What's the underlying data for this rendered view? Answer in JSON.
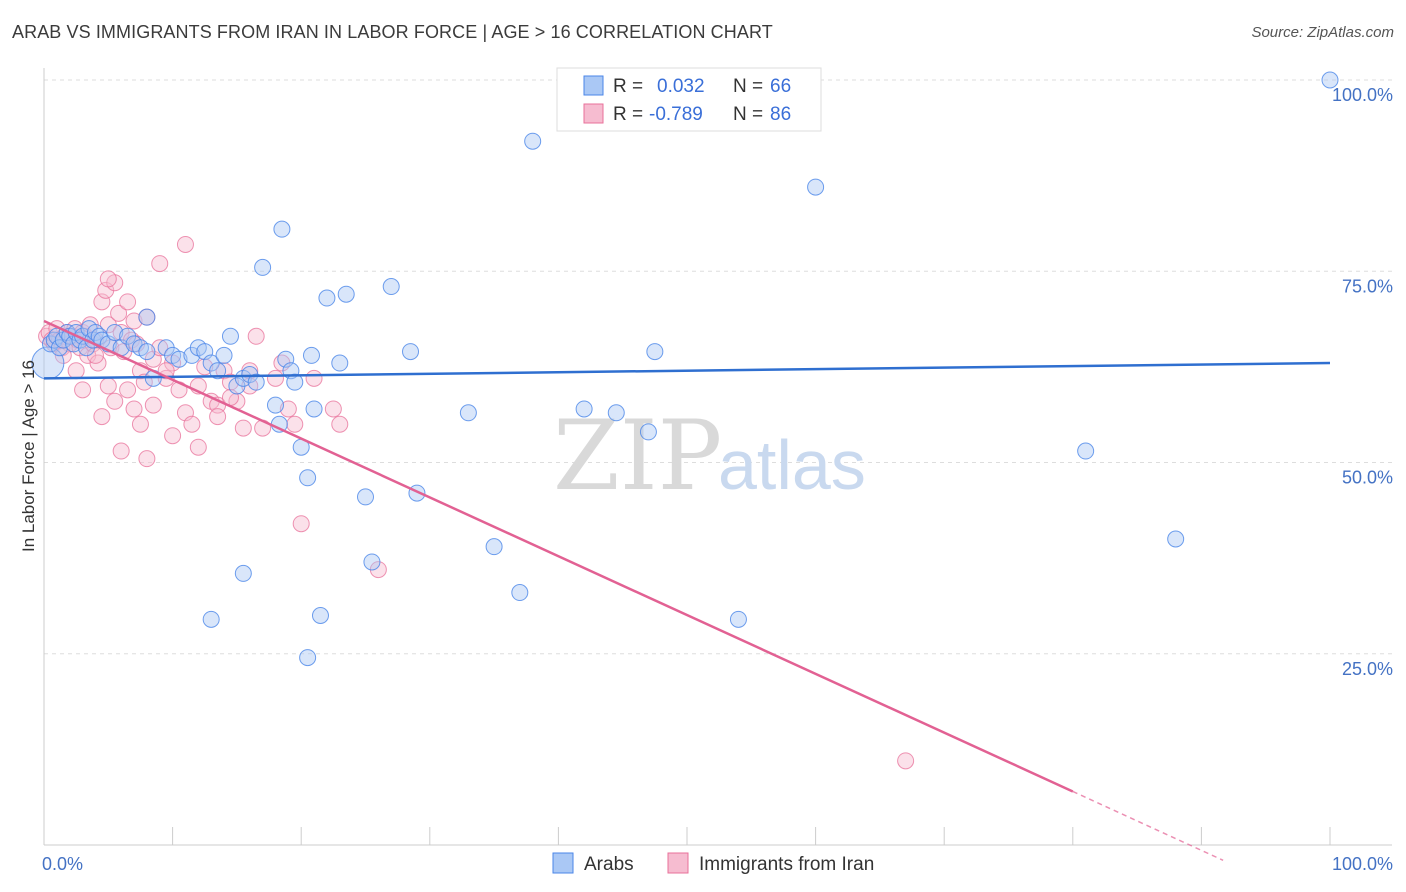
{
  "title": "ARAB VS IMMIGRANTS FROM IRAN IN LABOR FORCE | AGE > 16 CORRELATION CHART",
  "source": "Source: ZipAtlas.com",
  "watermark": {
    "zip": "ZIP",
    "atlas": "atlas"
  },
  "colors": {
    "blue": "#4a86e8",
    "blue_fill": "#aac8f5",
    "pink": "#e8709a",
    "pink_fill": "#f6bcd0",
    "axis_text": "#4472c4",
    "grid": "#dddddd"
  },
  "legend": {
    "r_label": "R =",
    "n_label": "N =",
    "rows": [
      {
        "r": "0.032",
        "n": "66"
      },
      {
        "r": "-0.789",
        "n": "86"
      }
    ]
  },
  "chart_data": {
    "type": "scatter",
    "title": "ARAB VS IMMIGRANTS FROM IRAN IN LABOR FORCE | AGE > 16 CORRELATION CHART",
    "xlabel": "",
    "ylabel": "In Labor Force | Age > 16",
    "xlim": [
      0,
      100
    ],
    "ylim": [
      0,
      100
    ],
    "x_tick_labels": [
      {
        "value": 0,
        "label": "0.0%"
      },
      {
        "value": 100,
        "label": "100.0%"
      }
    ],
    "y_tick_labels": [
      {
        "value": 25,
        "label": "25.0%"
      },
      {
        "value": 50,
        "label": "50.0%"
      },
      {
        "value": 75,
        "label": "75.0%"
      },
      {
        "value": 100,
        "label": "100.0%"
      }
    ],
    "series": [
      {
        "name": "Arabs",
        "color": "#4a86e8",
        "r": 0.032,
        "n": 66,
        "trend": {
          "x": [
            0,
            100
          ],
          "y": [
            61.0,
            63.0
          ]
        },
        "points": [
          [
            0.3,
            63.0
          ],
          [
            0.5,
            65.5
          ],
          [
            0.8,
            66.0
          ],
          [
            1.0,
            66.5
          ],
          [
            1.2,
            65.0
          ],
          [
            1.5,
            66.0
          ],
          [
            1.8,
            67.0
          ],
          [
            2.0,
            66.5
          ],
          [
            2.3,
            65.5
          ],
          [
            2.5,
            67.0
          ],
          [
            2.8,
            66.0
          ],
          [
            3.0,
            66.5
          ],
          [
            3.3,
            65.0
          ],
          [
            3.5,
            67.5
          ],
          [
            3.8,
            66.0
          ],
          [
            4.0,
            67.0
          ],
          [
            4.3,
            66.5
          ],
          [
            4.5,
            66.0
          ],
          [
            5.0,
            65.5
          ],
          [
            5.5,
            67.0
          ],
          [
            6.0,
            65.0
          ],
          [
            6.5,
            66.5
          ],
          [
            7.0,
            65.5
          ],
          [
            7.5,
            65.0
          ],
          [
            8.0,
            64.5
          ],
          [
            8.5,
            61.0
          ],
          [
            8.0,
            69.0
          ],
          [
            9.5,
            65.0
          ],
          [
            10.0,
            64.0
          ],
          [
            10.5,
            63.5
          ],
          [
            11.5,
            64.0
          ],
          [
            12.0,
            65.0
          ],
          [
            12.5,
            64.5
          ],
          [
            13.0,
            63.0
          ],
          [
            13.5,
            62.0
          ],
          [
            14.0,
            64.0
          ],
          [
            14.5,
            66.5
          ],
          [
            15.0,
            60.0
          ],
          [
            15.5,
            61.0
          ],
          [
            16.0,
            61.5
          ],
          [
            16.5,
            60.5
          ],
          [
            17.0,
            75.5
          ],
          [
            18.0,
            57.5
          ],
          [
            18.3,
            55.0
          ],
          [
            18.8,
            63.5
          ],
          [
            19.2,
            62.0
          ],
          [
            19.5,
            60.5
          ],
          [
            20.0,
            52.0
          ],
          [
            20.5,
            48.0
          ],
          [
            20.8,
            64.0
          ],
          [
            21.0,
            57.0
          ],
          [
            22.0,
            71.5
          ],
          [
            23.0,
            63.0
          ],
          [
            23.5,
            72.0
          ],
          [
            25.0,
            45.5
          ],
          [
            25.5,
            37.0
          ],
          [
            27.0,
            73.0
          ],
          [
            28.5,
            64.5
          ],
          [
            29.0,
            46.0
          ],
          [
            33.0,
            56.5
          ],
          [
            35.0,
            39.0
          ],
          [
            38.0,
            92.0
          ],
          [
            42.0,
            57.0
          ],
          [
            44.5,
            56.5
          ],
          [
            47.0,
            54.0
          ],
          [
            47.5,
            64.5
          ],
          [
            54.0,
            29.5
          ],
          [
            60.0,
            86.0
          ],
          [
            81.0,
            51.5
          ],
          [
            88.0,
            40.0
          ],
          [
            100.0,
            100.0
          ]
        ],
        "extra_points": [
          [
            13.0,
            29.5
          ],
          [
            15.5,
            35.5
          ],
          [
            20.5,
            24.5
          ],
          [
            21.5,
            30.0
          ],
          [
            18.5,
            80.5
          ],
          [
            37.0,
            33.0
          ]
        ]
      },
      {
        "name": "Immigrants from Iran",
        "color": "#e8709a",
        "r": -0.789,
        "n": 86,
        "trend": {
          "x": [
            0,
            80
          ],
          "y": [
            68.5,
            7.0
          ]
        },
        "trend_dashed": {
          "x": [
            80,
            100
          ],
          "y": [
            7.0,
            -8.4
          ]
        },
        "points": [
          [
            0.2,
            66.5
          ],
          [
            0.4,
            67.0
          ],
          [
            0.6,
            66.0
          ],
          [
            0.8,
            65.5
          ],
          [
            1.0,
            67.5
          ],
          [
            1.2,
            66.0
          ],
          [
            1.4,
            65.0
          ],
          [
            1.6,
            66.5
          ],
          [
            1.8,
            67.0
          ],
          [
            2.0,
            65.5
          ],
          [
            2.2,
            66.5
          ],
          [
            2.4,
            67.5
          ],
          [
            2.6,
            66.0
          ],
          [
            2.8,
            65.0
          ],
          [
            3.0,
            67.0
          ],
          [
            3.2,
            66.5
          ],
          [
            3.4,
            64.0
          ],
          [
            3.6,
            68.0
          ],
          [
            3.8,
            65.5
          ],
          [
            4.0,
            66.0
          ],
          [
            4.2,
            63.0
          ],
          [
            4.5,
            71.0
          ],
          [
            4.8,
            72.5
          ],
          [
            5.0,
            68.0
          ],
          [
            5.2,
            65.0
          ],
          [
            5.5,
            73.5
          ],
          [
            5.8,
            69.5
          ],
          [
            6.0,
            67.0
          ],
          [
            6.2,
            64.5
          ],
          [
            6.5,
            71.0
          ],
          [
            6.8,
            66.0
          ],
          [
            7.0,
            68.5
          ],
          [
            7.2,
            65.5
          ],
          [
            7.5,
            62.0
          ],
          [
            7.8,
            60.5
          ],
          [
            8.0,
            69.0
          ],
          [
            8.5,
            63.5
          ],
          [
            9.0,
            65.0
          ],
          [
            9.5,
            61.0
          ],
          [
            10.0,
            63.0
          ],
          [
            10.5,
            59.5
          ],
          [
            11.0,
            56.5
          ],
          [
            11.5,
            55.0
          ],
          [
            12.0,
            60.0
          ],
          [
            12.5,
            62.5
          ],
          [
            13.0,
            58.0
          ],
          [
            13.5,
            57.5
          ],
          [
            14.0,
            62.0
          ],
          [
            14.5,
            60.5
          ],
          [
            15.0,
            58.0
          ],
          [
            15.5,
            54.5
          ],
          [
            16.0,
            62.0
          ],
          [
            16.5,
            66.5
          ],
          [
            18.0,
            61.0
          ],
          [
            18.5,
            63.0
          ],
          [
            19.0,
            57.0
          ],
          [
            19.5,
            55.0
          ],
          [
            20.0,
            42.0
          ],
          [
            21.0,
            61.0
          ],
          [
            22.5,
            57.0
          ],
          [
            23.0,
            55.0
          ],
          [
            4.5,
            56.0
          ],
          [
            5.0,
            60.0
          ],
          [
            5.5,
            58.0
          ],
          [
            6.0,
            51.5
          ],
          [
            7.5,
            55.0
          ],
          [
            8.0,
            50.5
          ],
          [
            9.0,
            76.0
          ],
          [
            11.0,
            78.5
          ],
          [
            3.0,
            59.5
          ],
          [
            2.5,
            62.0
          ],
          [
            1.5,
            64.0
          ],
          [
            4.0,
            64.0
          ],
          [
            6.5,
            59.5
          ],
          [
            7.0,
            57.0
          ],
          [
            8.5,
            57.5
          ],
          [
            9.5,
            62.0
          ],
          [
            10.0,
            53.5
          ],
          [
            12.0,
            52.0
          ],
          [
            13.5,
            56.0
          ],
          [
            14.5,
            58.5
          ],
          [
            16.0,
            60.0
          ],
          [
            17.0,
            54.5
          ],
          [
            26.0,
            36.0
          ],
          [
            67.0,
            11.0
          ],
          [
            5.0,
            74.0
          ]
        ]
      }
    ]
  },
  "bottom_legend": [
    {
      "label": "Arabs"
    },
    {
      "label": "Immigrants from Iran"
    }
  ]
}
